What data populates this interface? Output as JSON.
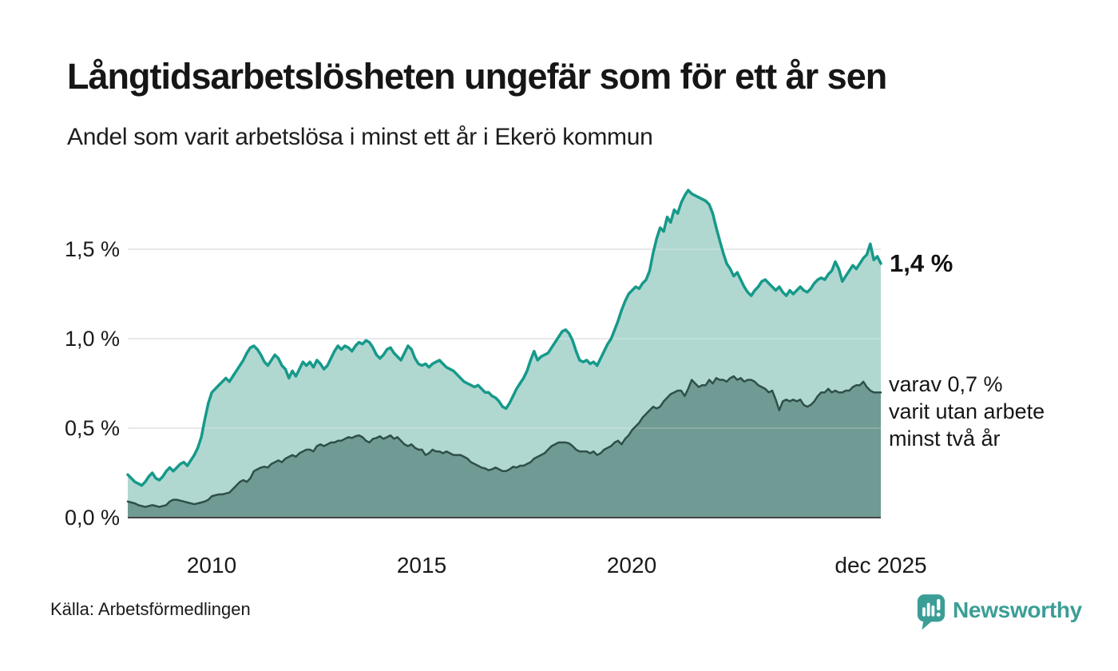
{
  "header": {
    "title": "Långtidsarbetslösheten ungefär som för ett år sen",
    "subtitle": "Andel som varit arbetslösa i minst ett år i Ekerö kommun"
  },
  "annotations": {
    "latest_total": "1,4 %",
    "latest_two_years_line1": "varav 0,7 %",
    "latest_two_years_line2": "varit utan arbete",
    "latest_two_years_line3": "minst två år"
  },
  "footer": {
    "source": "Källa: Arbetsförmedlingen",
    "brand": "Newsworthy"
  },
  "colors": {
    "teal_line": "#16998a",
    "teal_fill": "#b0d8d1",
    "dark_line": "#2f4f4a",
    "dark_fill": "#709a94",
    "grid": "#e4e4e8",
    "axis": "#464646",
    "brand": "#3b9e96"
  },
  "chart_data": {
    "type": "area",
    "title": "Långtidsarbetslösheten ungefär som för ett år sen",
    "subtitle": "Andel som varit arbetslösa i minst ett år i Ekerö kommun",
    "unit": "%",
    "frequency": "monthly",
    "x_start": "2008-01",
    "x_end": "2025-12",
    "grid": "horizontal",
    "legend_position": "none",
    "x_tick_labels": [
      "2010",
      "2015",
      "2020",
      "dec 2025"
    ],
    "y_tick_labels": [
      "0,0 %",
      "0,5 %",
      "1,0 %",
      "1,5 %"
    ],
    "y_tick_values": [
      0,
      0.5,
      1.0,
      1.5
    ],
    "ylim": [
      0,
      1.9
    ],
    "series": [
      {
        "name": "Andel som varit arbetslösa minst ett år",
        "end_label": "1,4 %",
        "end_value": 1.4,
        "line": "#16998a",
        "fill": "#b0d8d1",
        "values": [
          0.24,
          0.22,
          0.2,
          0.19,
          0.18,
          0.2,
          0.23,
          0.25,
          0.22,
          0.21,
          0.23,
          0.26,
          0.28,
          0.26,
          0.28,
          0.3,
          0.31,
          0.29,
          0.32,
          0.35,
          0.39,
          0.45,
          0.55,
          0.64,
          0.7,
          0.72,
          0.74,
          0.76,
          0.78,
          0.76,
          0.79,
          0.82,
          0.85,
          0.88,
          0.92,
          0.95,
          0.96,
          0.94,
          0.91,
          0.87,
          0.85,
          0.88,
          0.91,
          0.89,
          0.85,
          0.83,
          0.78,
          0.82,
          0.79,
          0.83,
          0.87,
          0.85,
          0.87,
          0.84,
          0.88,
          0.86,
          0.83,
          0.85,
          0.89,
          0.93,
          0.96,
          0.94,
          0.96,
          0.95,
          0.93,
          0.96,
          0.98,
          0.97,
          0.99,
          0.98,
          0.95,
          0.91,
          0.89,
          0.91,
          0.94,
          0.95,
          0.92,
          0.9,
          0.88,
          0.92,
          0.96,
          0.94,
          0.89,
          0.86,
          0.85,
          0.86,
          0.84,
          0.86,
          0.87,
          0.88,
          0.86,
          0.84,
          0.83,
          0.82,
          0.8,
          0.78,
          0.76,
          0.75,
          0.74,
          0.73,
          0.74,
          0.72,
          0.7,
          0.7,
          0.68,
          0.67,
          0.65,
          0.62,
          0.61,
          0.64,
          0.68,
          0.72,
          0.75,
          0.78,
          0.82,
          0.88,
          0.93,
          0.88,
          0.9,
          0.91,
          0.92,
          0.95,
          0.98,
          1.01,
          1.04,
          1.05,
          1.03,
          0.99,
          0.93,
          0.88,
          0.87,
          0.88,
          0.86,
          0.87,
          0.85,
          0.89,
          0.93,
          0.97,
          1.0,
          1.05,
          1.1,
          1.16,
          1.21,
          1.25,
          1.27,
          1.29,
          1.28,
          1.31,
          1.33,
          1.38,
          1.48,
          1.56,
          1.62,
          1.6,
          1.68,
          1.65,
          1.72,
          1.7,
          1.76,
          1.8,
          1.83,
          1.81,
          1.8,
          1.79,
          1.78,
          1.77,
          1.75,
          1.7,
          1.62,
          1.55,
          1.48,
          1.42,
          1.39,
          1.35,
          1.37,
          1.33,
          1.29,
          1.26,
          1.24,
          1.27,
          1.29,
          1.32,
          1.33,
          1.31,
          1.29,
          1.27,
          1.29,
          1.26,
          1.24,
          1.27,
          1.25,
          1.27,
          1.29,
          1.27,
          1.26,
          1.28,
          1.31,
          1.33,
          1.34,
          1.33,
          1.36,
          1.38,
          1.43,
          1.39,
          1.32,
          1.35,
          1.38,
          1.41,
          1.39,
          1.42,
          1.45,
          1.47,
          1.53,
          1.44,
          1.46,
          1.42
        ]
      },
      {
        "name": "varav arbetslösa minst två år",
        "end_label": "varav 0,7 % varit utan arbete minst två år",
        "end_value": 0.7,
        "line": "#2f4f4a",
        "fill": "#709a94",
        "values": [
          0.09,
          0.085,
          0.08,
          0.07,
          0.065,
          0.06,
          0.065,
          0.07,
          0.065,
          0.06,
          0.065,
          0.07,
          0.09,
          0.1,
          0.1,
          0.095,
          0.09,
          0.085,
          0.08,
          0.075,
          0.08,
          0.085,
          0.09,
          0.1,
          0.12,
          0.125,
          0.13,
          0.13,
          0.135,
          0.14,
          0.16,
          0.18,
          0.2,
          0.21,
          0.2,
          0.22,
          0.26,
          0.27,
          0.28,
          0.285,
          0.28,
          0.3,
          0.31,
          0.32,
          0.31,
          0.33,
          0.34,
          0.35,
          0.34,
          0.36,
          0.37,
          0.38,
          0.38,
          0.37,
          0.4,
          0.41,
          0.4,
          0.41,
          0.42,
          0.42,
          0.43,
          0.43,
          0.44,
          0.45,
          0.445,
          0.455,
          0.46,
          0.45,
          0.43,
          0.42,
          0.44,
          0.445,
          0.455,
          0.44,
          0.45,
          0.46,
          0.44,
          0.45,
          0.43,
          0.41,
          0.4,
          0.41,
          0.39,
          0.38,
          0.38,
          0.35,
          0.36,
          0.38,
          0.37,
          0.37,
          0.36,
          0.37,
          0.36,
          0.35,
          0.35,
          0.35,
          0.34,
          0.33,
          0.31,
          0.3,
          0.29,
          0.28,
          0.275,
          0.265,
          0.27,
          0.28,
          0.27,
          0.26,
          0.26,
          0.27,
          0.285,
          0.28,
          0.29,
          0.29,
          0.3,
          0.31,
          0.33,
          0.34,
          0.35,
          0.36,
          0.38,
          0.4,
          0.41,
          0.42,
          0.42,
          0.42,
          0.415,
          0.4,
          0.38,
          0.37,
          0.37,
          0.37,
          0.36,
          0.37,
          0.35,
          0.36,
          0.38,
          0.39,
          0.4,
          0.42,
          0.43,
          0.41,
          0.44,
          0.46,
          0.49,
          0.51,
          0.53,
          0.56,
          0.58,
          0.6,
          0.62,
          0.61,
          0.62,
          0.65,
          0.67,
          0.69,
          0.7,
          0.71,
          0.71,
          0.68,
          0.72,
          0.77,
          0.75,
          0.73,
          0.74,
          0.74,
          0.77,
          0.75,
          0.78,
          0.77,
          0.77,
          0.76,
          0.78,
          0.79,
          0.77,
          0.78,
          0.76,
          0.77,
          0.77,
          0.76,
          0.74,
          0.73,
          0.72,
          0.7,
          0.71,
          0.66,
          0.6,
          0.65,
          0.66,
          0.65,
          0.66,
          0.65,
          0.66,
          0.63,
          0.62,
          0.63,
          0.65,
          0.68,
          0.7,
          0.7,
          0.72,
          0.7,
          0.71,
          0.7,
          0.7,
          0.71,
          0.71,
          0.73,
          0.74,
          0.74,
          0.76,
          0.73,
          0.71,
          0.7,
          0.7,
          0.7
        ]
      }
    ]
  }
}
